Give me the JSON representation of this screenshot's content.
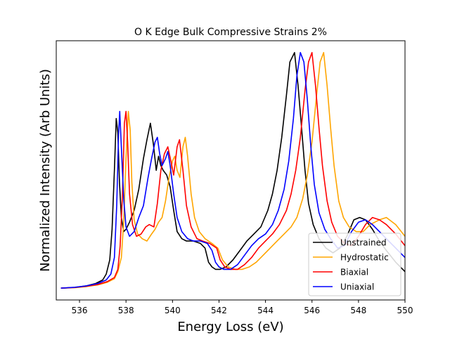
{
  "chart_data": {
    "type": "line",
    "title": "O K Edge Bulk Compressive Strains 2%",
    "xlabel": "Energy Loss (eV)",
    "ylabel": "Normalized Intensity (Arb Units)",
    "xlim": [
      535,
      550
    ],
    "ylim": [
      -0.05,
      1.05
    ],
    "xticks": [
      536,
      538,
      540,
      542,
      544,
      546,
      548,
      550
    ],
    "xtick_labels": [
      "536",
      "538",
      "540",
      "542",
      "544",
      "546",
      "548",
      "550"
    ],
    "yticks_visible": false,
    "grid": false,
    "legend": "lower-right",
    "series": [
      {
        "name": "Unstrained",
        "color": "#000000",
        "points": [
          [
            535.2,
            0.0
          ],
          [
            535.8,
            0.003
          ],
          [
            536.3,
            0.01
          ],
          [
            536.7,
            0.02
          ],
          [
            537.0,
            0.035
          ],
          [
            537.15,
            0.06
          ],
          [
            537.3,
            0.12
          ],
          [
            537.4,
            0.25
          ],
          [
            537.5,
            0.5
          ],
          [
            537.58,
            0.72
          ],
          [
            537.65,
            0.66
          ],
          [
            537.72,
            0.45
          ],
          [
            537.8,
            0.3
          ],
          [
            537.9,
            0.24
          ],
          [
            538.0,
            0.25
          ],
          [
            538.15,
            0.28
          ],
          [
            538.35,
            0.33
          ],
          [
            538.55,
            0.42
          ],
          [
            538.75,
            0.55
          ],
          [
            538.9,
            0.63
          ],
          [
            539.05,
            0.7
          ],
          [
            539.18,
            0.61
          ],
          [
            539.3,
            0.5
          ],
          [
            539.4,
            0.56
          ],
          [
            539.5,
            0.52
          ],
          [
            539.6,
            0.5
          ],
          [
            539.75,
            0.48
          ],
          [
            539.9,
            0.43
          ],
          [
            540.05,
            0.33
          ],
          [
            540.2,
            0.24
          ],
          [
            540.4,
            0.21
          ],
          [
            540.6,
            0.2
          ],
          [
            540.9,
            0.2
          ],
          [
            541.2,
            0.19
          ],
          [
            541.4,
            0.17
          ],
          [
            541.55,
            0.11
          ],
          [
            541.7,
            0.09
          ],
          [
            541.85,
            0.08
          ],
          [
            542.05,
            0.08
          ],
          [
            542.3,
            0.09
          ],
          [
            542.6,
            0.12
          ],
          [
            542.9,
            0.16
          ],
          [
            543.2,
            0.2
          ],
          [
            543.5,
            0.23
          ],
          [
            543.8,
            0.26
          ],
          [
            544.1,
            0.33
          ],
          [
            544.3,
            0.4
          ],
          [
            544.5,
            0.5
          ],
          [
            544.7,
            0.64
          ],
          [
            544.9,
            0.82
          ],
          [
            545.05,
            0.96
          ],
          [
            545.25,
            1.0
          ],
          [
            545.4,
            0.86
          ],
          [
            545.55,
            0.68
          ],
          [
            545.7,
            0.5
          ],
          [
            545.85,
            0.36
          ],
          [
            546.05,
            0.27
          ],
          [
            546.3,
            0.21
          ],
          [
            546.6,
            0.17
          ],
          [
            546.9,
            0.15
          ],
          [
            547.2,
            0.17
          ],
          [
            547.5,
            0.22
          ],
          [
            547.8,
            0.29
          ],
          [
            548.05,
            0.3
          ],
          [
            548.3,
            0.29
          ],
          [
            548.6,
            0.25
          ],
          [
            548.9,
            0.2
          ],
          [
            549.2,
            0.16
          ],
          [
            549.6,
            0.11
          ],
          [
            550.0,
            0.07
          ]
        ]
      },
      {
        "name": "Hydrostatic",
        "color": "#ffa500",
        "points": [
          [
            535.2,
            0.0
          ],
          [
            535.8,
            0.002
          ],
          [
            536.3,
            0.007
          ],
          [
            536.8,
            0.014
          ],
          [
            537.2,
            0.025
          ],
          [
            537.5,
            0.04
          ],
          [
            537.65,
            0.07
          ],
          [
            537.8,
            0.13
          ],
          [
            537.9,
            0.28
          ],
          [
            538.0,
            0.55
          ],
          [
            538.1,
            0.75
          ],
          [
            538.18,
            0.67
          ],
          [
            538.25,
            0.45
          ],
          [
            538.35,
            0.29
          ],
          [
            538.5,
            0.23
          ],
          [
            538.7,
            0.21
          ],
          [
            538.9,
            0.2
          ],
          [
            539.1,
            0.23
          ],
          [
            539.25,
            0.25
          ],
          [
            539.4,
            0.28
          ],
          [
            539.55,
            0.3
          ],
          [
            539.7,
            0.37
          ],
          [
            539.85,
            0.47
          ],
          [
            540.0,
            0.54
          ],
          [
            540.1,
            0.56
          ],
          [
            540.2,
            0.5
          ],
          [
            540.32,
            0.47
          ],
          [
            540.45,
            0.6
          ],
          [
            540.55,
            0.64
          ],
          [
            540.65,
            0.56
          ],
          [
            540.8,
            0.4
          ],
          [
            540.95,
            0.3
          ],
          [
            541.15,
            0.24
          ],
          [
            541.4,
            0.21
          ],
          [
            541.7,
            0.19
          ],
          [
            541.95,
            0.17
          ],
          [
            542.15,
            0.12
          ],
          [
            542.4,
            0.09
          ],
          [
            542.7,
            0.08
          ],
          [
            543.0,
            0.08
          ],
          [
            543.3,
            0.09
          ],
          [
            543.6,
            0.11
          ],
          [
            543.9,
            0.14
          ],
          [
            544.2,
            0.17
          ],
          [
            544.5,
            0.2
          ],
          [
            544.8,
            0.23
          ],
          [
            545.1,
            0.26
          ],
          [
            545.35,
            0.3
          ],
          [
            545.6,
            0.38
          ],
          [
            545.8,
            0.48
          ],
          [
            546.0,
            0.62
          ],
          [
            546.2,
            0.82
          ],
          [
            546.35,
            0.96
          ],
          [
            546.5,
            1.0
          ],
          [
            546.65,
            0.86
          ],
          [
            546.8,
            0.68
          ],
          [
            546.95,
            0.52
          ],
          [
            547.15,
            0.37
          ],
          [
            547.35,
            0.3
          ],
          [
            547.6,
            0.26
          ],
          [
            547.9,
            0.24
          ],
          [
            548.2,
            0.24
          ],
          [
            548.5,
            0.27
          ],
          [
            548.9,
            0.29
          ],
          [
            549.2,
            0.3
          ],
          [
            549.6,
            0.27
          ],
          [
            550.0,
            0.22
          ]
        ]
      },
      {
        "name": "Biaxial",
        "color": "#ff0000",
        "points": [
          [
            535.2,
            0.0
          ],
          [
            535.8,
            0.003
          ],
          [
            536.3,
            0.008
          ],
          [
            536.8,
            0.016
          ],
          [
            537.2,
            0.028
          ],
          [
            537.5,
            0.045
          ],
          [
            537.65,
            0.08
          ],
          [
            537.75,
            0.18
          ],
          [
            537.85,
            0.4
          ],
          [
            537.93,
            0.7
          ],
          [
            538.0,
            0.75
          ],
          [
            538.07,
            0.62
          ],
          [
            538.15,
            0.4
          ],
          [
            538.28,
            0.27
          ],
          [
            538.45,
            0.22
          ],
          [
            538.65,
            0.23
          ],
          [
            538.85,
            0.26
          ],
          [
            539.0,
            0.27
          ],
          [
            539.2,
            0.26
          ],
          [
            539.35,
            0.36
          ],
          [
            539.5,
            0.5
          ],
          [
            539.65,
            0.57
          ],
          [
            539.8,
            0.6
          ],
          [
            539.95,
            0.53
          ],
          [
            540.05,
            0.48
          ],
          [
            540.2,
            0.6
          ],
          [
            540.3,
            0.63
          ],
          [
            540.45,
            0.5
          ],
          [
            540.6,
            0.35
          ],
          [
            540.8,
            0.26
          ],
          [
            541.05,
            0.21
          ],
          [
            541.3,
            0.2
          ],
          [
            541.6,
            0.19
          ],
          [
            541.9,
            0.17
          ],
          [
            542.05,
            0.12
          ],
          [
            542.25,
            0.09
          ],
          [
            542.5,
            0.08
          ],
          [
            542.8,
            0.08
          ],
          [
            543.1,
            0.1
          ],
          [
            543.4,
            0.13
          ],
          [
            543.7,
            0.17
          ],
          [
            544.0,
            0.2
          ],
          [
            544.3,
            0.23
          ],
          [
            544.6,
            0.27
          ],
          [
            544.9,
            0.33
          ],
          [
            545.1,
            0.4
          ],
          [
            545.3,
            0.5
          ],
          [
            545.5,
            0.64
          ],
          [
            545.7,
            0.84
          ],
          [
            545.85,
            0.96
          ],
          [
            546.0,
            1.0
          ],
          [
            546.15,
            0.86
          ],
          [
            546.3,
            0.68
          ],
          [
            546.45,
            0.52
          ],
          [
            546.65,
            0.37
          ],
          [
            546.85,
            0.28
          ],
          [
            547.1,
            0.22
          ],
          [
            547.4,
            0.19
          ],
          [
            547.7,
            0.18
          ],
          [
            548.0,
            0.22
          ],
          [
            548.3,
            0.27
          ],
          [
            548.6,
            0.3
          ],
          [
            548.9,
            0.29
          ],
          [
            549.2,
            0.27
          ],
          [
            549.6,
            0.23
          ],
          [
            550.0,
            0.18
          ]
        ]
      },
      {
        "name": "Uniaxial",
        "color": "#0000ff",
        "points": [
          [
            535.2,
            0.0
          ],
          [
            535.8,
            0.004
          ],
          [
            536.3,
            0.01
          ],
          [
            536.8,
            0.02
          ],
          [
            537.15,
            0.035
          ],
          [
            537.35,
            0.06
          ],
          [
            537.5,
            0.13
          ],
          [
            537.6,
            0.35
          ],
          [
            537.68,
            0.65
          ],
          [
            537.73,
            0.75
          ],
          [
            537.8,
            0.6
          ],
          [
            537.9,
            0.38
          ],
          [
            538.0,
            0.26
          ],
          [
            538.15,
            0.22
          ],
          [
            538.35,
            0.24
          ],
          [
            538.55,
            0.3
          ],
          [
            538.75,
            0.35
          ],
          [
            538.95,
            0.47
          ],
          [
            539.1,
            0.55
          ],
          [
            539.25,
            0.62
          ],
          [
            539.35,
            0.64
          ],
          [
            539.45,
            0.57
          ],
          [
            539.55,
            0.52
          ],
          [
            539.7,
            0.55
          ],
          [
            539.8,
            0.58
          ],
          [
            539.9,
            0.52
          ],
          [
            540.05,
            0.4
          ],
          [
            540.2,
            0.3
          ],
          [
            540.4,
            0.24
          ],
          [
            540.65,
            0.21
          ],
          [
            540.9,
            0.2
          ],
          [
            541.2,
            0.2
          ],
          [
            541.5,
            0.19
          ],
          [
            541.7,
            0.16
          ],
          [
            541.85,
            0.11
          ],
          [
            542.0,
            0.09
          ],
          [
            542.2,
            0.08
          ],
          [
            542.5,
            0.08
          ],
          [
            542.8,
            0.1
          ],
          [
            543.1,
            0.14
          ],
          [
            543.4,
            0.18
          ],
          [
            543.7,
            0.21
          ],
          [
            544.0,
            0.23
          ],
          [
            544.3,
            0.27
          ],
          [
            544.55,
            0.33
          ],
          [
            544.8,
            0.42
          ],
          [
            545.0,
            0.54
          ],
          [
            545.2,
            0.72
          ],
          [
            545.35,
            0.9
          ],
          [
            545.5,
            1.0
          ],
          [
            545.65,
            0.96
          ],
          [
            545.8,
            0.8
          ],
          [
            545.95,
            0.6
          ],
          [
            546.1,
            0.44
          ],
          [
            546.3,
            0.32
          ],
          [
            546.55,
            0.25
          ],
          [
            546.8,
            0.21
          ],
          [
            547.1,
            0.17
          ],
          [
            547.4,
            0.18
          ],
          [
            547.7,
            0.24
          ],
          [
            548.0,
            0.28
          ],
          [
            548.3,
            0.29
          ],
          [
            548.6,
            0.27
          ],
          [
            548.9,
            0.24
          ],
          [
            549.2,
            0.21
          ],
          [
            549.6,
            0.17
          ],
          [
            550.0,
            0.13
          ]
        ]
      }
    ]
  }
}
